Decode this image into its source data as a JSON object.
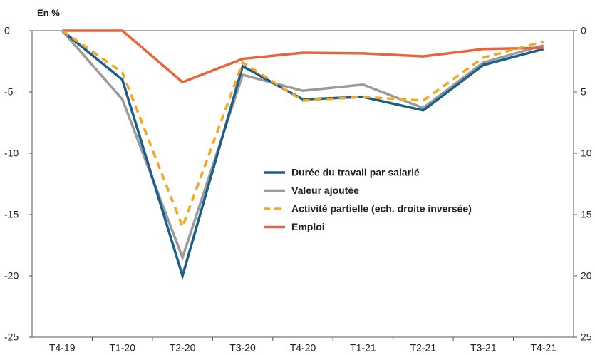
{
  "chart_data": {
    "type": "line",
    "y_label": "En %",
    "categories": [
      "T4-19",
      "T1-20",
      "T2-20",
      "T3-20",
      "T4-20",
      "T1-21",
      "T2-21",
      "T3-21",
      "T4-21"
    ],
    "ylim": [
      -25,
      0
    ],
    "yticks": [
      0,
      -5,
      -10,
      -15,
      -20,
      -25
    ],
    "y2lim": [
      25,
      0
    ],
    "y2ticks": [
      0,
      5,
      10,
      15,
      20,
      25
    ],
    "series": [
      {
        "name": "Durée du travail par salarié",
        "color": "#1a5e8c",
        "values": [
          0,
          -4.0,
          -20.0,
          -2.9,
          -5.6,
          -5.4,
          -6.5,
          -2.8,
          -1.5
        ]
      },
      {
        "name": "Valeur ajoutée",
        "color": "#9b9b9b",
        "values": [
          0,
          -5.6,
          -18.5,
          -3.6,
          -4.9,
          -4.4,
          -6.3,
          -2.6,
          -1.2
        ]
      },
      {
        "name": "Activité partielle (ech. droite inversée)",
        "color": "#f5a623",
        "dashed": true,
        "axis": "y2",
        "values": [
          0,
          3.4,
          16.0,
          2.6,
          5.7,
          5.4,
          5.7,
          2.2,
          0.9
        ]
      },
      {
        "name": "Emploi",
        "color": "#e8643a",
        "values": [
          0,
          0,
          -4.2,
          -2.3,
          -1.8,
          -1.85,
          -2.1,
          -1.5,
          -1.4
        ]
      }
    ]
  }
}
